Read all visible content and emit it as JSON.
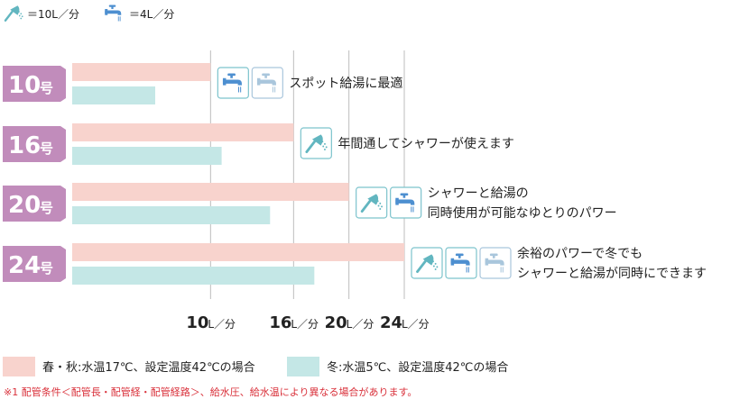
{
  "icon_legend": [
    {
      "icon": "shower-icon",
      "label": "＝10L／分"
    },
    {
      "icon": "faucet-icon",
      "label": "＝4L／分"
    }
  ],
  "chart_data": {
    "type": "bar",
    "orientation": "horizontal",
    "categories": [
      "10号",
      "16号",
      "20号",
      "24号"
    ],
    "category_parts": [
      {
        "num": "10",
        "unit": "号"
      },
      {
        "num": "16",
        "unit": "号"
      },
      {
        "num": "20",
        "unit": "号"
      },
      {
        "num": "24",
        "unit": "号"
      }
    ],
    "series": [
      {
        "name": "春・秋:水温17℃、設定温度42℃の場合",
        "color": "#f8d3cd",
        "values": [
          10,
          16,
          20,
          24
        ]
      },
      {
        "name": "冬:水温5℃、設定温度42℃の場合",
        "color": "#c4e7e6",
        "values": [
          6,
          10.8,
          14.3,
          17.5
        ]
      }
    ],
    "xlim": [
      0,
      24
    ],
    "xticks": [
      {
        "num": "10",
        "unit": "L／分",
        "value": 10
      },
      {
        "num": "16",
        "unit": "L／分",
        "value": 16
      },
      {
        "num": "20",
        "unit": "L／分",
        "value": 20
      },
      {
        "num": "24",
        "unit": "L／分",
        "value": 24
      }
    ],
    "grid": "vertical",
    "legend_position": "bottom",
    "annotations": [
      {
        "category": "10号",
        "lines": [
          "スポット給湯に最適"
        ],
        "icons": [
          "faucet-icon",
          "faucet-faint-icon"
        ]
      },
      {
        "category": "16号",
        "lines": [
          "年間通してシャワーが使えます"
        ],
        "icons": [
          "shower-icon"
        ]
      },
      {
        "category": "20号",
        "lines": [
          "シャワーと給湯の",
          "同時使用が可能なゆとりのパワー"
        ],
        "icons": [
          "shower-icon",
          "faucet-icon"
        ]
      },
      {
        "category": "24号",
        "lines": [
          "余裕のパワーで冬でも",
          "シャワーと給湯が同時にできます"
        ],
        "icons": [
          "shower-icon",
          "faucet-icon",
          "faucet-faint-icon"
        ]
      }
    ]
  },
  "colors": {
    "grade_label": "#c18cbb",
    "grid": "#bdbdbd",
    "icon_blue": "#4d8fd0",
    "icon_teal": "#62b6c0",
    "icon_faint": "#a9c6dc"
  },
  "footnote": "※1 配管条件＜配管長・配管経・配管経路＞、給水圧、給水温により異なる場合があります。"
}
